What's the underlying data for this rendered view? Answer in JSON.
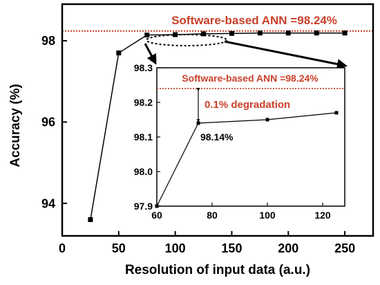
{
  "chart_data": [
    {
      "type": "line",
      "xlabel": "Resolution of input data (a.u.)",
      "ylabel": "Accuracy (%)",
      "xlim": [
        0,
        275
      ],
      "ylim": [
        93.2,
        98.9
      ],
      "xticks": [
        0,
        50,
        100,
        150,
        200,
        250
      ],
      "yticks": [
        94,
        96,
        98
      ],
      "grid": false,
      "series": [
        {
          "x": [
            25,
            50,
            75,
            100,
            125,
            150,
            175,
            200,
            225,
            250
          ],
          "y": [
            93.6,
            97.7,
            98.14,
            98.15,
            98.17,
            98.18,
            98.19,
            98.19,
            98.19,
            98.19
          ],
          "color": "#000000"
        }
      ],
      "reference_line": {
        "y": 98.24,
        "label": "Software-based ANN =98.24%",
        "color": "#c8402a"
      }
    },
    {
      "type": "line",
      "inset": true,
      "xlim": [
        60,
        128
      ],
      "ylim": [
        97.9,
        98.3
      ],
      "xticks": [
        60,
        80,
        100,
        120
      ],
      "yticks": [
        97.9,
        98.0,
        98.1,
        98.2,
        98.3
      ],
      "yticklabels": [
        "97.9",
        "98.0",
        "98.1",
        "98.2",
        "98.3"
      ],
      "series": [
        {
          "x": [
            60,
            75,
            100,
            125
          ],
          "y": [
            97.9,
            98.14,
            98.15,
            98.17
          ],
          "color": "#000000"
        }
      ],
      "reference_line": {
        "y": 98.24,
        "label": "Software-based ANN =98.24%",
        "color": "#c8402a"
      },
      "annotations": [
        {
          "text": "0.1% degradation",
          "color": "#c8402a"
        },
        {
          "text": "98.14%",
          "color": "#000000"
        }
      ]
    }
  ]
}
